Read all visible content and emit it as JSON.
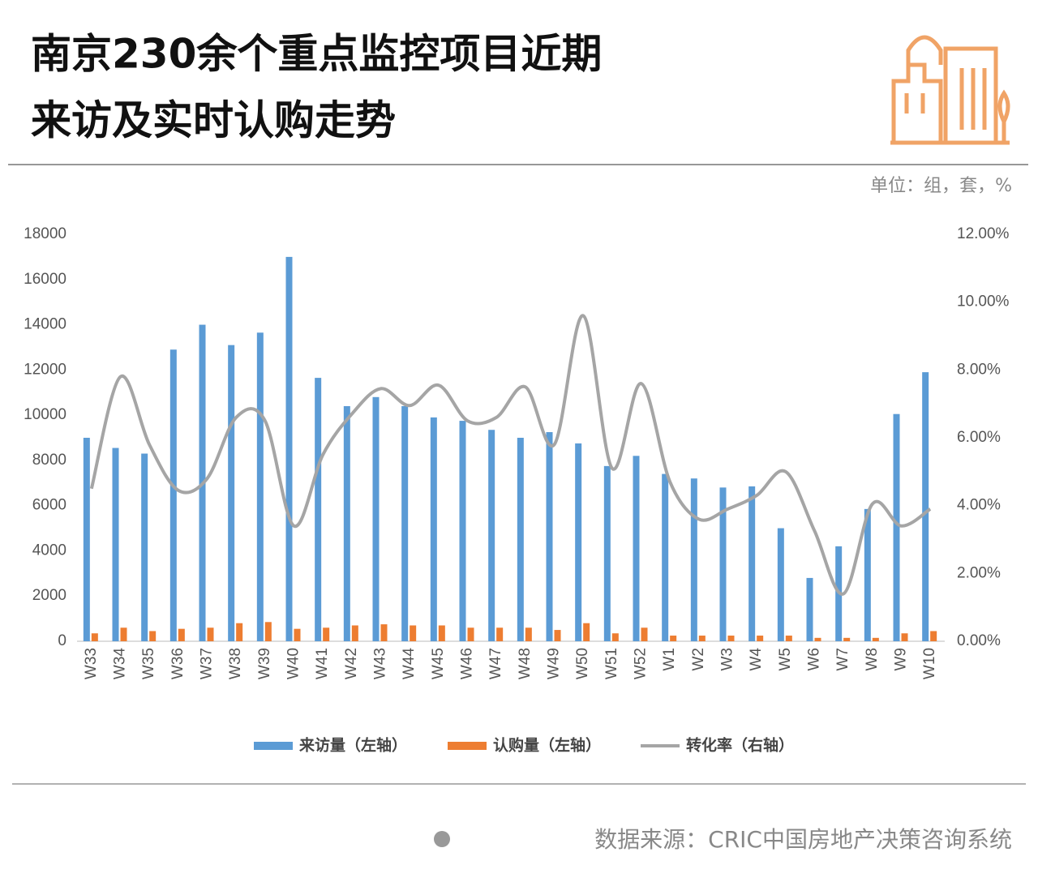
{
  "chart_data": {
    "type": "bar",
    "title": [
      "南京230余个重点监控项目近期",
      "来访及实时认购走势"
    ],
    "unit": "单位：组，套，%",
    "source": "数据来源：CRIC中国房地产决策咨询系统",
    "categories": [
      "W33",
      "W34",
      "W35",
      "W36",
      "W37",
      "W38",
      "W39",
      "W40",
      "W41",
      "W42",
      "W43",
      "W44",
      "W45",
      "W46",
      "W47",
      "W48",
      "W49",
      "W50",
      "W51",
      "W52",
      "W1",
      "W2",
      "W3",
      "W4",
      "W5",
      "W6",
      "W7",
      "W8",
      "W9",
      "W10"
    ],
    "series": [
      {
        "name": "来访量（左轴）",
        "type": "bar",
        "axis": "y",
        "color": "#5b9bd5",
        "values": [
          9000,
          8550,
          8300,
          12900,
          14000,
          13100,
          13650,
          17000,
          11650,
          10400,
          10800,
          10400,
          9900,
          9750,
          9350,
          9000,
          9250,
          8750,
          7750,
          8200,
          7400,
          7200,
          6800,
          6850,
          5000,
          2800,
          4200,
          5850,
          10050,
          11900
        ]
      },
      {
        "name": "认购量（左轴）",
        "type": "bar",
        "axis": "y",
        "color": "#ed7d31",
        "values": [
          350,
          600,
          450,
          550,
          600,
          800,
          850,
          550,
          600,
          700,
          750,
          700,
          700,
          600,
          600,
          600,
          500,
          800,
          350,
          600,
          250,
          250,
          250,
          250,
          250,
          150,
          150,
          150,
          350,
          450
        ]
      },
      {
        "name": "转化率（右轴）",
        "type": "line",
        "axis": "y2",
        "color": "#a5a5a5",
        "values": [
          4.5,
          7.8,
          5.8,
          4.45,
          4.8,
          6.6,
          6.5,
          3.4,
          5.5,
          6.7,
          7.45,
          6.95,
          7.55,
          6.5,
          6.6,
          7.5,
          5.8,
          9.6,
          5.1,
          7.6,
          4.7,
          3.6,
          3.9,
          4.3,
          5.0,
          3.25,
          1.4,
          4.05,
          3.4,
          3.9
        ]
      }
    ],
    "ylim": [
      0,
      18000
    ],
    "yticks": [
      0,
      2000,
      4000,
      6000,
      8000,
      10000,
      12000,
      14000,
      16000,
      18000
    ],
    "y2lim": [
      0,
      12
    ],
    "y2ticks": [
      {
        "value": 0,
        "label": "0.00%"
      },
      {
        "value": 2,
        "label": "2.00%"
      },
      {
        "value": 4,
        "label": "4.00%"
      },
      {
        "value": 6,
        "label": "6.00%"
      },
      {
        "value": 8,
        "label": "8.00%"
      },
      {
        "value": 10,
        "label": "10.00%"
      },
      {
        "value": 12,
        "label": "12.00%"
      }
    ],
    "grid": false,
    "legend": "bottom"
  }
}
